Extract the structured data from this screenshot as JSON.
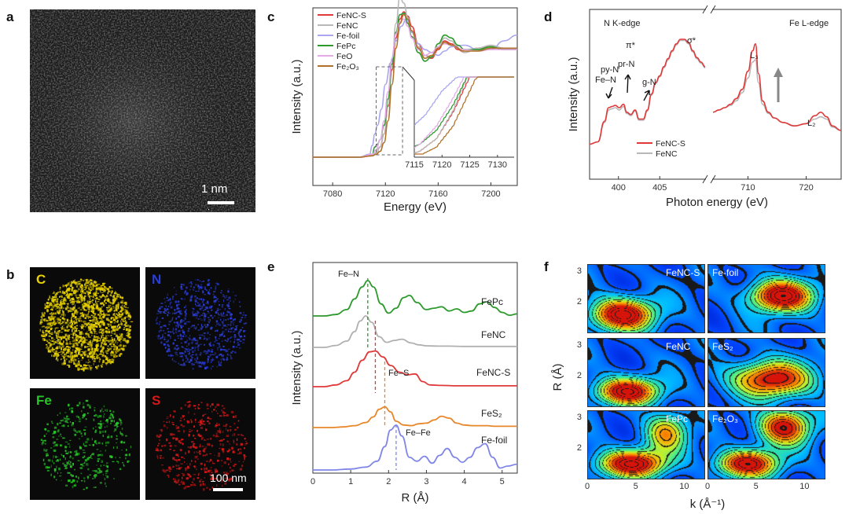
{
  "panel_labels": {
    "a": "a",
    "b": "b",
    "c": "c",
    "d": "d",
    "e": "e",
    "f": "f"
  },
  "panel_a": {
    "scale_bar": "1 nm"
  },
  "panel_b": {
    "elements": [
      "C",
      "N",
      "Fe",
      "S"
    ],
    "element_colors": [
      "#e8d200",
      "#2a3dd8",
      "#27c627",
      "#d81818"
    ],
    "scale_bar": "100 nm"
  },
  "chart_data": [
    {
      "panel": "c",
      "type": "line",
      "xlabel": "Energy (eV)",
      "ylabel": "Intensity (a.u.)",
      "xlim": [
        7065,
        7220
      ],
      "x_ticks": [
        7080,
        7120,
        7160,
        7200
      ],
      "legend_position": "top-left",
      "series": [
        {
          "name": "FeNC-S",
          "color": "#e0393a",
          "x": [
            7065,
            7100,
            7110,
            7113,
            7116,
            7119,
            7122,
            7125,
            7128,
            7131,
            7134,
            7137,
            7140,
            7145,
            7150,
            7155,
            7160,
            7165,
            7170,
            7175,
            7180,
            7190,
            7200,
            7210,
            7220
          ],
          "y": [
            0.0,
            0.0,
            0.01,
            0.03,
            0.07,
            0.16,
            0.35,
            0.6,
            0.82,
            0.95,
            1.0,
            0.97,
            0.9,
            0.78,
            0.7,
            0.68,
            0.74,
            0.8,
            0.78,
            0.74,
            0.72,
            0.75,
            0.76,
            0.74,
            0.74
          ]
        },
        {
          "name": "FeNC",
          "color": "#b8b8b8",
          "x": [
            7065,
            7100,
            7110,
            7113,
            7116,
            7119,
            7122,
            7125,
            7128,
            7131,
            7134,
            7137,
            7140,
            7145,
            7150,
            7155,
            7160,
            7165,
            7170,
            7175,
            7180,
            7190,
            7200,
            7210,
            7220
          ],
          "y": [
            0.0,
            0.0,
            0.01,
            0.03,
            0.07,
            0.16,
            0.36,
            0.64,
            0.92,
            1.1,
            1.06,
            0.96,
            0.86,
            0.76,
            0.7,
            0.69,
            0.76,
            0.82,
            0.8,
            0.75,
            0.72,
            0.75,
            0.77,
            0.75,
            0.75
          ]
        },
        {
          "name": "Fe-foil",
          "color": "#a9a6ee",
          "x": [
            7065,
            7100,
            7108,
            7110,
            7112,
            7114,
            7117,
            7120,
            7124,
            7128,
            7132,
            7136,
            7140,
            7145,
            7150,
            7155,
            7160,
            7165,
            7170,
            7180,
            7190,
            7200,
            7210,
            7220
          ],
          "y": [
            0.0,
            0.0,
            0.02,
            0.08,
            0.16,
            0.22,
            0.33,
            0.5,
            0.65,
            0.8,
            0.9,
            0.95,
            0.86,
            0.78,
            0.74,
            0.72,
            0.7,
            0.73,
            0.76,
            0.77,
            0.74,
            0.74,
            0.8,
            0.84
          ]
        },
        {
          "name": "FePc",
          "color": "#2e9a2e",
          "x": [
            7065,
            7100,
            7110,
            7112,
            7114,
            7116,
            7119,
            7122,
            7125,
            7128,
            7131,
            7134,
            7137,
            7140,
            7145,
            7150,
            7155,
            7160,
            7165,
            7170,
            7175,
            7180,
            7190,
            7200,
            7210,
            7220
          ],
          "y": [
            0.0,
            0.0,
            0.02,
            0.07,
            0.09,
            0.12,
            0.22,
            0.4,
            0.64,
            0.86,
            0.98,
            0.99,
            0.92,
            0.83,
            0.72,
            0.66,
            0.69,
            0.78,
            0.84,
            0.82,
            0.77,
            0.74,
            0.74,
            0.76,
            0.74,
            0.74
          ]
        },
        {
          "name": "FeO",
          "color": "#e5a9e8",
          "x": [
            7065,
            7100,
            7110,
            7113,
            7116,
            7119,
            7122,
            7125,
            7128,
            7131,
            7134,
            7137,
            7140,
            7145,
            7150,
            7155,
            7160,
            7165,
            7170,
            7180,
            7190,
            7200,
            7210,
            7220
          ],
          "y": [
            0.0,
            0.0,
            0.02,
            0.05,
            0.12,
            0.25,
            0.45,
            0.68,
            0.85,
            0.93,
            0.95,
            0.9,
            0.82,
            0.74,
            0.7,
            0.72,
            0.76,
            0.78,
            0.77,
            0.74,
            0.73,
            0.74,
            0.74,
            0.74
          ]
        },
        {
          "name": "Fe₂O₃",
          "color": "#b0722a",
          "x": [
            7065,
            7100,
            7110,
            7113,
            7116,
            7119,
            7122,
            7125,
            7128,
            7131,
            7134,
            7137,
            7140,
            7145,
            7150,
            7155,
            7160,
            7165,
            7170,
            7180,
            7190,
            7200,
            7210,
            7220
          ],
          "y": [
            0.0,
            0.0,
            0.01,
            0.02,
            0.04,
            0.1,
            0.25,
            0.5,
            0.75,
            0.92,
            0.98,
            0.95,
            0.87,
            0.75,
            0.68,
            0.7,
            0.75,
            0.79,
            0.77,
            0.73,
            0.73,
            0.75,
            0.75,
            0.75
          ]
        }
      ],
      "inset": {
        "xlim": [
          7115,
          7133
        ],
        "x_ticks": [
          7115,
          7120,
          7125,
          7130
        ]
      }
    },
    {
      "panel": "d",
      "type": "line",
      "xlabel": "Photon energy (eV)",
      "ylabel": "Intensity (a.u.)",
      "segments": [
        {
          "title": "N K-edge",
          "xlim": [
            396.5,
            410.5
          ],
          "x_ticks": [
            400,
            405
          ]
        },
        {
          "title": "Fe L-edge",
          "xlim": [
            704,
            726
          ],
          "x_ticks": [
            710,
            720
          ]
        }
      ],
      "annotations": [
        "py-N",
        "Fe–N",
        "pr-N",
        "π*",
        "g-N",
        "σ*",
        "L₃",
        "L₂"
      ],
      "legend_position": "bottom-left",
      "series": [
        {
          "name": "FeNC-S",
          "color": "#e0393a",
          "n_x": [
            396.5,
            397.5,
            398.3,
            398.8,
            399.2,
            399.6,
            400.1,
            400.6,
            401.0,
            401.5,
            402.0,
            402.5,
            403.0,
            403.5,
            404.0,
            404.5,
            405.0,
            405.5,
            406.0,
            406.5,
            407.0,
            407.5,
            408.0,
            408.5,
            409.0,
            409.5,
            410.0,
            410.5
          ],
          "n_y": [
            0.08,
            0.1,
            0.28,
            0.4,
            0.41,
            0.42,
            0.4,
            0.43,
            0.36,
            0.34,
            0.38,
            0.3,
            0.3,
            0.38,
            0.52,
            0.62,
            0.68,
            0.76,
            0.83,
            0.9,
            0.96,
            1.0,
            1.0,
            0.97,
            0.9,
            0.84,
            0.8,
            0.76
          ],
          "fe_x": [
            704,
            705,
            706,
            707,
            708,
            709,
            710,
            710.8,
            711.3,
            711.8,
            712.5,
            713.5,
            714.5,
            716,
            718,
            720,
            721.5,
            722.5,
            723.5,
            724.5,
            726
          ],
          "fe_y": [
            0.36,
            0.38,
            0.4,
            0.43,
            0.48,
            0.56,
            0.72,
            0.9,
            0.96,
            0.7,
            0.46,
            0.36,
            0.31,
            0.27,
            0.24,
            0.26,
            0.33,
            0.36,
            0.32,
            0.24,
            0.2
          ]
        },
        {
          "name": "FeNC",
          "color": "#b8b8b8",
          "n_x": [
            396.5,
            397.5,
            398.3,
            398.8,
            399.2,
            399.6,
            400.1,
            400.6,
            401.0,
            401.5,
            402.0,
            402.5,
            403.0,
            403.5,
            404.0,
            404.5,
            405.0,
            405.5,
            406.0,
            406.5,
            407.0,
            407.5,
            408.0,
            408.5,
            409.0,
            409.5,
            410.0,
            410.5
          ],
          "n_y": [
            0.08,
            0.1,
            0.27,
            0.38,
            0.39,
            0.4,
            0.38,
            0.41,
            0.35,
            0.33,
            0.37,
            0.29,
            0.29,
            0.37,
            0.51,
            0.61,
            0.67,
            0.75,
            0.82,
            0.89,
            0.95,
            0.99,
            0.99,
            0.96,
            0.89,
            0.83,
            0.79,
            0.75
          ],
          "fe_x": [
            704,
            705,
            706,
            707,
            708,
            709,
            710,
            710.8,
            711.3,
            711.8,
            712.5,
            713.5,
            714.5,
            716,
            718,
            720,
            721.5,
            722.5,
            723.5,
            724.5,
            726
          ],
          "fe_y": [
            0.36,
            0.38,
            0.4,
            0.42,
            0.46,
            0.53,
            0.66,
            0.8,
            0.82,
            0.62,
            0.43,
            0.35,
            0.31,
            0.27,
            0.24,
            0.26,
            0.3,
            0.32,
            0.3,
            0.23,
            0.2
          ]
        }
      ]
    },
    {
      "panel": "e",
      "type": "line",
      "xlabel": "R (Å)",
      "ylabel": "Intensity (a.u.)",
      "xlim": [
        0,
        5.4
      ],
      "x_ticks": [
        0,
        1,
        2,
        3,
        4,
        5
      ],
      "annotations": [
        "Fe–N",
        "Fe–S",
        "Fe–Fe"
      ],
      "series": [
        {
          "name": "FePc",
          "color": "#2e9a2e",
          "x": [
            0,
            0.3,
            0.6,
            0.9,
            1.1,
            1.3,
            1.45,
            1.6,
            1.8,
            2.0,
            2.2,
            2.4,
            2.55,
            2.75,
            3.0,
            3.2,
            3.4,
            3.6,
            3.8,
            4.0,
            4.2,
            4.4,
            4.6,
            4.8,
            5.0,
            5.2,
            5.4
          ],
          "y": [
            0,
            0,
            0.04,
            0.18,
            0.48,
            0.82,
            1.0,
            0.82,
            0.34,
            0.08,
            0.22,
            0.52,
            0.58,
            0.38,
            0.18,
            0.22,
            0.26,
            0.14,
            0.2,
            0.1,
            0.14,
            0.34,
            0.4,
            0.24,
            0.1,
            0.02,
            0.06
          ]
        },
        {
          "name": "FeNC",
          "color": "#b0b0b0",
          "x": [
            0,
            0.3,
            0.6,
            0.9,
            1.1,
            1.25,
            1.4,
            1.55,
            1.75,
            1.95,
            2.15,
            2.35,
            2.6,
            2.8,
            3.0,
            3.3,
            3.6,
            4.0,
            4.4,
            4.8,
            5.4
          ],
          "y": [
            0,
            0,
            0.06,
            0.2,
            0.5,
            0.84,
            1.0,
            0.8,
            0.34,
            0.16,
            0.22,
            0.26,
            0.14,
            0.08,
            0.05,
            0.04,
            0.04,
            0.03,
            0.03,
            0.03,
            0.03
          ]
        },
        {
          "name": "FeNC-S",
          "color": "#e0393a",
          "x": [
            0,
            0.3,
            0.6,
            0.9,
            1.1,
            1.3,
            1.5,
            1.65,
            1.85,
            2.05,
            2.3,
            2.5,
            2.7,
            2.9,
            3.1,
            3.4,
            3.8,
            4.2,
            4.6,
            5.0,
            5.4
          ],
          "y": [
            0,
            0,
            0.04,
            0.14,
            0.34,
            0.62,
            0.82,
            0.84,
            0.7,
            0.5,
            0.34,
            0.28,
            0.3,
            0.12,
            0.04,
            0.03,
            0.02,
            0.02,
            0.02,
            0.02,
            0.02
          ]
        },
        {
          "name": "FeS₂",
          "color": "#e8862a",
          "x": [
            0,
            0.5,
            0.8,
            1.1,
            1.4,
            1.6,
            1.75,
            1.9,
            2.05,
            2.2,
            2.4,
            2.6,
            2.8,
            3.0,
            3.2,
            3.4,
            3.6,
            3.8,
            4.0,
            4.2,
            4.4,
            4.6,
            4.8,
            5.0,
            5.2,
            5.4
          ],
          "y": [
            0,
            0,
            0.02,
            0.06,
            0.16,
            0.34,
            0.58,
            0.66,
            0.5,
            0.2,
            0.08,
            0.06,
            0.12,
            0.14,
            0.24,
            0.36,
            0.3,
            0.14,
            0.08,
            0.06,
            0.06,
            0.06,
            0.04,
            0.04,
            0.04,
            0.04
          ]
        },
        {
          "name": "Fe-foil",
          "color": "#7f86e8",
          "x": [
            0,
            0.5,
            1.0,
            1.4,
            1.7,
            1.9,
            2.05,
            2.2,
            2.35,
            2.55,
            2.75,
            2.95,
            3.15,
            3.35,
            3.55,
            3.75,
            3.95,
            4.15,
            4.35,
            4.55,
            4.75,
            4.95,
            5.15,
            5.4
          ],
          "y": [
            0,
            0,
            0.02,
            0.06,
            0.18,
            0.48,
            0.82,
            0.92,
            0.7,
            0.26,
            0.18,
            0.28,
            0.14,
            0.3,
            0.44,
            0.26,
            0.16,
            0.26,
            0.46,
            0.54,
            0.26,
            0.04,
            0.08,
            0.12
          ]
        }
      ]
    },
    {
      "panel": "f",
      "type": "heatmap",
      "xlabel": "k (Å⁻¹)",
      "ylabel": "R (Å)",
      "xlim": [
        0,
        12
      ],
      "ylim": [
        1,
        3.2
      ],
      "x_ticks": [
        0,
        5,
        10
      ],
      "y_ticks": [
        1,
        2,
        3
      ],
      "maps": [
        {
          "label": "FeNC-S",
          "peaks": [
            [
              3.5,
              1.6,
              1.0,
              2.2,
              0.35
            ]
          ]
        },
        {
          "label": "Fe-foil",
          "peaks": [
            [
              7.5,
              2.2,
              1.0,
              2.2,
              0.35
            ]
          ]
        },
        {
          "label": "FeNC",
          "peaks": [
            [
              4.0,
              1.5,
              0.95,
              2.2,
              0.3
            ]
          ]
        },
        {
          "label": "FeS₂",
          "peaks": [
            [
              6.5,
              1.9,
              0.85,
              2.8,
              0.4
            ]
          ]
        },
        {
          "label": "FePc",
          "peaks": [
            [
              4.5,
              1.5,
              0.95,
              2.4,
              0.3
            ],
            [
              8.0,
              2.5,
              0.55,
              1.5,
              0.45
            ]
          ]
        },
        {
          "label": "Fe₂O₃",
          "peaks": [
            [
              4.0,
              1.5,
              0.9,
              2.2,
              0.3
            ],
            [
              7.8,
              2.7,
              0.85,
              1.8,
              0.4
            ]
          ]
        }
      ]
    }
  ]
}
